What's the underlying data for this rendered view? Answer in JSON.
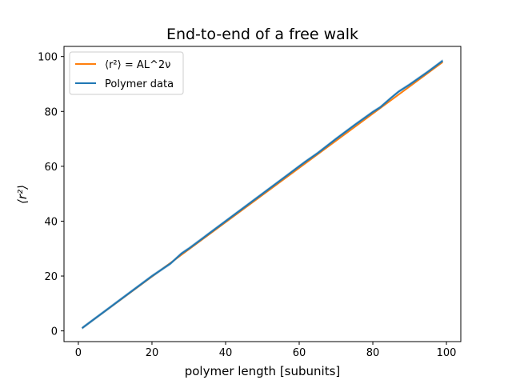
{
  "chart_data": {
    "type": "line",
    "title": "End-to-end of a free walk",
    "xlabel": "polymer length [subunits]",
    "ylabel": "⟨r²⟩",
    "xlim": [
      -3.9,
      103.9
    ],
    "ylim": [
      -3.9,
      103.7
    ],
    "xticks": [
      0,
      20,
      40,
      60,
      80,
      100
    ],
    "yticks": [
      0,
      20,
      40,
      60,
      80,
      100
    ],
    "grid": false,
    "legend_position": "upper left",
    "series": [
      {
        "name": "⟨r²⟩ = AL^2ν",
        "color": "#ff7f0e",
        "x": [
          1,
          99
        ],
        "y": [
          1.0,
          98.0
        ]
      },
      {
        "name": "Polymer data",
        "color": "#1f77b4",
        "x": [
          1,
          5,
          10,
          15,
          20,
          25,
          28,
          30,
          35,
          40,
          45,
          50,
          55,
          60,
          62,
          65,
          70,
          75,
          80,
          82,
          85,
          87,
          90,
          95,
          99
        ],
        "y": [
          1.0,
          5.0,
          10.0,
          15.0,
          20.0,
          24.5,
          28.2,
          30.0,
          35.0,
          40.0,
          45.0,
          50.0,
          55.0,
          60.0,
          62.0,
          64.8,
          70.0,
          75.0,
          79.8,
          81.5,
          85.0,
          87.2,
          89.8,
          94.5,
          98.5
        ],
        "band": 0.6
      }
    ]
  }
}
